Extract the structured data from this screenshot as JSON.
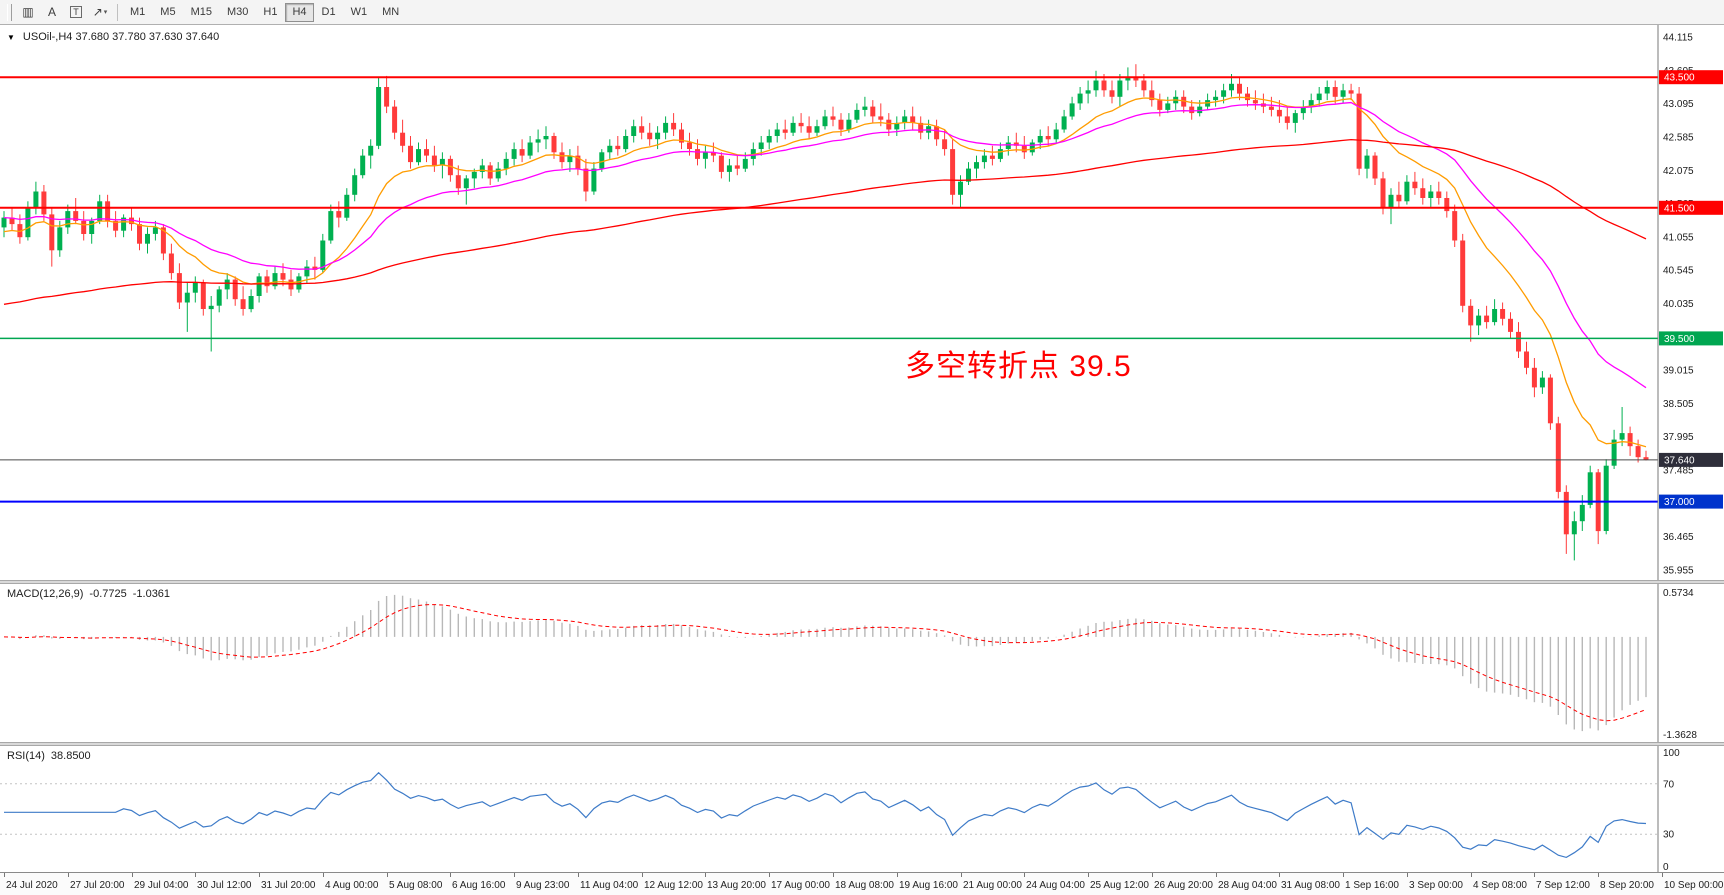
{
  "icons": {
    "one_click_caret": "▼",
    "dropdown_caret": "▾"
  },
  "toolbar": {
    "tools": [
      {
        "name": "chart-grid",
        "glyph": "▥"
      },
      {
        "name": "cursor-a",
        "glyph": "A"
      },
      {
        "name": "text-tool",
        "glyph": "T",
        "boxed": true
      },
      {
        "name": "line-studies-dropdown",
        "glyph": "↗",
        "caret": true
      }
    ],
    "timeframes": [
      {
        "label": "M1"
      },
      {
        "label": "M5"
      },
      {
        "label": "M15"
      },
      {
        "label": "M30"
      },
      {
        "label": "H1"
      },
      {
        "label": "H4",
        "active": true
      },
      {
        "label": "D1"
      },
      {
        "label": "W1"
      },
      {
        "label": "MN"
      }
    ]
  },
  "main_chart": {
    "symbol_header": "USOil-,H4  37.680 37.780 37.630 37.640",
    "annotation": {
      "text": "多空转折点 39.5",
      "color": "#ff0000"
    },
    "scale": {
      "max": 44.3,
      "min": 35.8
    },
    "price_axis_labels": [
      "44.115",
      "43.605",
      "43.095",
      "42.585",
      "42.075",
      "41.565",
      "41.055",
      "40.545",
      "40.035",
      "39.525",
      "39.015",
      "38.505",
      "37.995",
      "37.485",
      "36.975",
      "36.465",
      "35.955"
    ],
    "levels": [
      {
        "price": 43.5,
        "label": "43.500",
        "color": "#ff0000",
        "label_bg": "#ff0000",
        "width": 2,
        "kind": "hline"
      },
      {
        "price": 41.5,
        "label": "41.500",
        "color": "#ff0000",
        "label_bg": "#ff0000",
        "width": 2,
        "kind": "hline"
      },
      {
        "price": 39.5,
        "label": "39.500",
        "color": "#00a651",
        "label_bg": "#00a651",
        "width": 1.5,
        "kind": "hline"
      },
      {
        "price": 37.0,
        "label": "37.000",
        "color": "#0000ff",
        "label_bg": "#0033cc",
        "width": 2,
        "kind": "hline"
      },
      {
        "price": 37.64,
        "label": "37.640",
        "color": "#4a4a4a",
        "label_bg": "#2e2e3a",
        "width": 1,
        "kind": "bid"
      }
    ],
    "colors": {
      "up": "#00b050",
      "down": "#ff3b3b"
    }
  },
  "chart_data": {
    "type": "candlestick",
    "symbol": "USOil-",
    "timeframe": "H4",
    "ohlc_last": {
      "open": "37.680",
      "high": "37.780",
      "low": "37.630",
      "close": "37.640"
    },
    "bars_per_label": 8,
    "time_labels": [
      "24 Jul 2020",
      "27 Jul 20:00",
      "29 Jul 04:00",
      "30 Jul 12:00",
      "31 Jul 20:00",
      "4 Aug 00:00",
      "5 Aug 08:00",
      "6 Aug 16:00",
      "9 Aug 23:00",
      "11 Aug 04:00",
      "12 Aug 12:00",
      "13 Aug 20:00",
      "17 Aug 00:00",
      "18 Aug 08:00",
      "19 Aug 16:00",
      "21 Aug 00:00",
      "24 Aug 04:00",
      "25 Aug 12:00",
      "26 Aug 20:00",
      "28 Aug 04:00",
      "31 Aug 08:00",
      "1 Sep 16:00",
      "3 Sep 00:00",
      "4 Sep 08:00",
      "7 Sep 12:00",
      "8 Sep 20:00",
      "10 Sep 00:00"
    ],
    "moving_averages": [
      {
        "name": "ma-fast",
        "period": 13,
        "color": "#ff9c00",
        "seed": 41.1
      },
      {
        "name": "ma-mid",
        "period": 28,
        "color": "#ff00ff",
        "seed": 41.35
      },
      {
        "name": "ma-slow",
        "period": 120,
        "color": "#ff0000",
        "seed": 40.0
      }
    ],
    "candles": [
      [
        41.2,
        41.45,
        41.05,
        41.35
      ],
      [
        41.35,
        41.5,
        41.15,
        41.25
      ],
      [
        41.25,
        41.4,
        40.95,
        41.05
      ],
      [
        41.05,
        41.6,
        41.0,
        41.5
      ],
      [
        41.5,
        41.9,
        41.4,
        41.75
      ],
      [
        41.75,
        41.85,
        41.3,
        41.4
      ],
      [
        41.4,
        41.5,
        40.6,
        40.85
      ],
      [
        40.85,
        41.3,
        40.75,
        41.2
      ],
      [
        41.2,
        41.55,
        41.1,
        41.45
      ],
      [
        41.45,
        41.65,
        41.25,
        41.3
      ],
      [
        41.3,
        41.45,
        41.0,
        41.1
      ],
      [
        41.1,
        41.35,
        40.95,
        41.3
      ],
      [
        41.3,
        41.7,
        41.25,
        41.6
      ],
      [
        41.6,
        41.7,
        41.2,
        41.3
      ],
      [
        41.3,
        41.45,
        41.05,
        41.15
      ],
      [
        41.15,
        41.4,
        41.05,
        41.35
      ],
      [
        41.35,
        41.5,
        41.15,
        41.25
      ],
      [
        41.25,
        41.35,
        40.85,
        40.95
      ],
      [
        40.95,
        41.2,
        40.8,
        41.1
      ],
      [
        41.1,
        41.3,
        41.0,
        41.2
      ],
      [
        41.2,
        41.25,
        40.7,
        40.8
      ],
      [
        40.8,
        40.95,
        40.4,
        40.5
      ],
      [
        40.5,
        40.65,
        39.95,
        40.05
      ],
      [
        40.05,
        40.35,
        39.6,
        40.2
      ],
      [
        40.2,
        40.45,
        40.05,
        40.35
      ],
      [
        40.35,
        40.4,
        39.85,
        39.95
      ],
      [
        39.95,
        40.15,
        39.3,
        40.0
      ],
      [
        40.0,
        40.3,
        39.9,
        40.25
      ],
      [
        40.25,
        40.5,
        40.1,
        40.4
      ],
      [
        40.4,
        40.45,
        40.0,
        40.1
      ],
      [
        40.1,
        40.3,
        39.85,
        39.95
      ],
      [
        39.95,
        40.25,
        39.9,
        40.15
      ],
      [
        40.15,
        40.5,
        40.05,
        40.45
      ],
      [
        40.45,
        40.55,
        40.2,
        40.3
      ],
      [
        40.3,
        40.6,
        40.25,
        40.5
      ],
      [
        40.5,
        40.65,
        40.3,
        40.4
      ],
      [
        40.4,
        40.55,
        40.15,
        40.25
      ],
      [
        40.25,
        40.5,
        40.2,
        40.45
      ],
      [
        40.45,
        40.7,
        40.35,
        40.6
      ],
      [
        40.6,
        40.75,
        40.4,
        40.55
      ],
      [
        40.55,
        41.1,
        40.5,
        41.0
      ],
      [
        41.0,
        41.55,
        40.95,
        41.45
      ],
      [
        41.45,
        41.6,
        41.2,
        41.35
      ],
      [
        41.35,
        41.8,
        41.3,
        41.7
      ],
      [
        41.7,
        42.1,
        41.6,
        42.0
      ],
      [
        42.0,
        42.4,
        41.95,
        42.3
      ],
      [
        42.3,
        42.55,
        42.1,
        42.45
      ],
      [
        42.45,
        43.5,
        42.4,
        43.35
      ],
      [
        43.35,
        43.52,
        42.95,
        43.05
      ],
      [
        43.05,
        43.15,
        42.55,
        42.65
      ],
      [
        42.65,
        42.85,
        42.35,
        42.45
      ],
      [
        42.45,
        42.6,
        42.1,
        42.2
      ],
      [
        42.2,
        42.5,
        42.15,
        42.4
      ],
      [
        42.4,
        42.55,
        42.2,
        42.3
      ],
      [
        42.3,
        42.45,
        42.05,
        42.15
      ],
      [
        42.15,
        42.35,
        41.95,
        42.25
      ],
      [
        42.25,
        42.3,
        41.9,
        42.0
      ],
      [
        42.0,
        42.15,
        41.7,
        41.8
      ],
      [
        41.8,
        42.0,
        41.55,
        41.95
      ],
      [
        41.95,
        42.1,
        41.8,
        42.05
      ],
      [
        42.05,
        42.25,
        41.95,
        42.15
      ],
      [
        42.15,
        42.2,
        41.85,
        41.95
      ],
      [
        41.95,
        42.2,
        41.9,
        42.1
      ],
      [
        42.1,
        42.35,
        42.0,
        42.25
      ],
      [
        42.25,
        42.5,
        42.15,
        42.4
      ],
      [
        42.4,
        42.55,
        42.2,
        42.3
      ],
      [
        42.3,
        42.6,
        42.25,
        42.5
      ],
      [
        42.5,
        42.7,
        42.35,
        42.55
      ],
      [
        42.55,
        42.75,
        42.4,
        42.6
      ],
      [
        42.6,
        42.65,
        42.25,
        42.35
      ],
      [
        42.35,
        42.5,
        42.1,
        42.2
      ],
      [
        42.2,
        42.4,
        42.05,
        42.3
      ],
      [
        42.3,
        42.45,
        42.0,
        42.1
      ],
      [
        42.1,
        42.25,
        41.6,
        41.75
      ],
      [
        41.75,
        42.2,
        41.7,
        42.1
      ],
      [
        42.1,
        42.4,
        42.05,
        42.35
      ],
      [
        42.35,
        42.55,
        42.25,
        42.45
      ],
      [
        42.45,
        42.6,
        42.3,
        42.4
      ],
      [
        42.4,
        42.7,
        42.35,
        42.6
      ],
      [
        42.6,
        42.85,
        42.5,
        42.75
      ],
      [
        42.75,
        42.9,
        42.55,
        42.65
      ],
      [
        42.65,
        42.8,
        42.45,
        42.55
      ],
      [
        42.55,
        42.75,
        42.4,
        42.65
      ],
      [
        42.65,
        42.9,
        42.55,
        42.8
      ],
      [
        42.8,
        42.95,
        42.6,
        42.7
      ],
      [
        42.7,
        42.8,
        42.4,
        42.5
      ],
      [
        42.5,
        42.65,
        42.3,
        42.4
      ],
      [
        42.4,
        42.55,
        42.15,
        42.25
      ],
      [
        42.25,
        42.45,
        42.1,
        42.35
      ],
      [
        42.35,
        42.5,
        42.2,
        42.3
      ],
      [
        42.3,
        42.35,
        41.95,
        42.05
      ],
      [
        42.05,
        42.25,
        41.9,
        42.15
      ],
      [
        42.15,
        42.3,
        42.0,
        42.1
      ],
      [
        42.1,
        42.35,
        42.05,
        42.25
      ],
      [
        42.25,
        42.5,
        42.15,
        42.4
      ],
      [
        42.4,
        42.6,
        42.3,
        42.5
      ],
      [
        42.5,
        42.7,
        42.4,
        42.6
      ],
      [
        42.6,
        42.8,
        42.5,
        42.7
      ],
      [
        42.7,
        42.85,
        42.55,
        42.65
      ],
      [
        42.65,
        42.9,
        42.6,
        42.8
      ],
      [
        42.8,
        42.95,
        42.65,
        42.75
      ],
      [
        42.75,
        42.9,
        42.55,
        42.65
      ],
      [
        42.65,
        42.85,
        42.6,
        42.75
      ],
      [
        42.75,
        43.0,
        42.7,
        42.9
      ],
      [
        42.9,
        43.05,
        42.75,
        42.85
      ],
      [
        42.85,
        42.95,
        42.6,
        42.7
      ],
      [
        42.7,
        42.95,
        42.65,
        42.85
      ],
      [
        42.85,
        43.1,
        42.8,
        43.0
      ],
      [
        43.0,
        43.2,
        42.9,
        43.05
      ],
      [
        43.05,
        43.15,
        42.8,
        42.9
      ],
      [
        42.9,
        43.1,
        42.75,
        42.85
      ],
      [
        42.85,
        42.95,
        42.6,
        42.7
      ],
      [
        42.7,
        42.9,
        42.6,
        42.8
      ],
      [
        42.8,
        43.0,
        42.7,
        42.9
      ],
      [
        42.9,
        43.05,
        42.7,
        42.8
      ],
      [
        42.8,
        42.9,
        42.55,
        42.65
      ],
      [
        42.65,
        42.85,
        42.55,
        42.75
      ],
      [
        42.75,
        42.85,
        42.45,
        42.55
      ],
      [
        42.55,
        42.7,
        42.3,
        42.4
      ],
      [
        42.4,
        42.55,
        41.55,
        41.7
      ],
      [
        41.7,
        42.0,
        41.5,
        41.9
      ],
      [
        41.9,
        42.2,
        41.85,
        42.1
      ],
      [
        42.1,
        42.3,
        41.95,
        42.2
      ],
      [
        42.2,
        42.4,
        42.1,
        42.3
      ],
      [
        42.3,
        42.45,
        42.15,
        42.25
      ],
      [
        42.25,
        42.5,
        42.2,
        42.4
      ],
      [
        42.4,
        42.6,
        42.3,
        42.5
      ],
      [
        42.5,
        42.65,
        42.35,
        42.45
      ],
      [
        42.45,
        42.6,
        42.25,
        42.35
      ],
      [
        42.35,
        42.55,
        42.3,
        42.5
      ],
      [
        42.5,
        42.7,
        42.4,
        42.6
      ],
      [
        42.6,
        42.75,
        42.45,
        42.55
      ],
      [
        42.55,
        42.8,
        42.5,
        42.7
      ],
      [
        42.7,
        43.0,
        42.65,
        42.9
      ],
      [
        42.9,
        43.2,
        42.85,
        43.1
      ],
      [
        43.1,
        43.35,
        43.0,
        43.25
      ],
      [
        43.25,
        43.45,
        43.1,
        43.3
      ],
      [
        43.3,
        43.6,
        43.2,
        43.45
      ],
      [
        43.45,
        43.55,
        43.2,
        43.3
      ],
      [
        43.3,
        43.45,
        43.1,
        43.2
      ],
      [
        43.2,
        43.55,
        43.05,
        43.45
      ],
      [
        43.45,
        43.65,
        43.3,
        43.5
      ],
      [
        43.5,
        43.7,
        43.35,
        43.45
      ],
      [
        43.45,
        43.55,
        43.2,
        43.3
      ],
      [
        43.3,
        43.45,
        43.05,
        43.15
      ],
      [
        43.15,
        43.25,
        42.9,
        43.0
      ],
      [
        43.0,
        43.2,
        42.95,
        43.1
      ],
      [
        43.1,
        43.3,
        43.0,
        43.2
      ],
      [
        43.2,
        43.3,
        42.95,
        43.05
      ],
      [
        43.05,
        43.15,
        42.85,
        42.95
      ],
      [
        42.95,
        43.15,
        42.9,
        43.05
      ],
      [
        43.05,
        43.25,
        43.0,
        43.15
      ],
      [
        43.15,
        43.3,
        43.05,
        43.2
      ],
      [
        43.2,
        43.4,
        43.1,
        43.3
      ],
      [
        43.3,
        43.55,
        43.2,
        43.4
      ],
      [
        43.4,
        43.5,
        43.15,
        43.25
      ],
      [
        43.25,
        43.35,
        43.05,
        43.15
      ],
      [
        43.15,
        43.3,
        43.0,
        43.1
      ],
      [
        43.1,
        43.25,
        42.95,
        43.05
      ],
      [
        43.05,
        43.2,
        42.9,
        43.0
      ],
      [
        43.0,
        43.15,
        42.8,
        42.9
      ],
      [
        42.9,
        43.05,
        42.7,
        42.8
      ],
      [
        42.8,
        43.0,
        42.65,
        42.95
      ],
      [
        42.95,
        43.15,
        42.85,
        43.05
      ],
      [
        43.05,
        43.25,
        42.95,
        43.15
      ],
      [
        43.15,
        43.35,
        43.05,
        43.25
      ],
      [
        43.25,
        43.45,
        43.15,
        43.35
      ],
      [
        43.35,
        43.45,
        43.1,
        43.2
      ],
      [
        43.2,
        43.4,
        43.1,
        43.3
      ],
      [
        43.3,
        43.4,
        43.15,
        43.25
      ],
      [
        43.25,
        43.35,
        42.0,
        42.1
      ],
      [
        42.1,
        42.4,
        41.95,
        42.3
      ],
      [
        42.3,
        42.35,
        41.85,
        41.95
      ],
      [
        41.95,
        42.05,
        41.4,
        41.5
      ],
      [
        41.5,
        41.8,
        41.25,
        41.7
      ],
      [
        41.7,
        41.9,
        41.5,
        41.6
      ],
      [
        41.6,
        42.0,
        41.55,
        41.9
      ],
      [
        41.9,
        42.05,
        41.7,
        41.8
      ],
      [
        41.8,
        41.95,
        41.55,
        41.65
      ],
      [
        41.65,
        41.85,
        41.5,
        41.75
      ],
      [
        41.75,
        41.9,
        41.55,
        41.65
      ],
      [
        41.65,
        41.75,
        41.35,
        41.45
      ],
      [
        41.45,
        41.55,
        40.9,
        41.0
      ],
      [
        41.0,
        41.1,
        39.9,
        40.0
      ],
      [
        40.0,
        40.1,
        39.45,
        39.7
      ],
      [
        39.7,
        39.95,
        39.55,
        39.85
      ],
      [
        39.85,
        40.0,
        39.65,
        39.75
      ],
      [
        39.75,
        40.1,
        39.7,
        39.95
      ],
      [
        39.95,
        40.05,
        39.7,
        39.8
      ],
      [
        39.8,
        39.9,
        39.5,
        39.6
      ],
      [
        39.6,
        39.75,
        39.2,
        39.3
      ],
      [
        39.3,
        39.45,
        38.95,
        39.05
      ],
      [
        39.05,
        39.2,
        38.6,
        38.75
      ],
      [
        38.75,
        39.0,
        38.65,
        38.9
      ],
      [
        38.9,
        38.95,
        38.1,
        38.2
      ],
      [
        38.2,
        38.3,
        37.05,
        37.15
      ],
      [
        37.15,
        37.25,
        36.2,
        36.5
      ],
      [
        36.5,
        36.85,
        36.1,
        36.7
      ],
      [
        36.7,
        37.1,
        36.55,
        36.95
      ],
      [
        36.95,
        37.55,
        36.9,
        37.45
      ],
      [
        37.45,
        37.5,
        36.35,
        36.55
      ],
      [
        36.55,
        37.65,
        36.5,
        37.55
      ],
      [
        37.55,
        38.1,
        37.5,
        37.95
      ],
      [
        37.95,
        38.45,
        37.85,
        38.05
      ],
      [
        38.05,
        38.15,
        37.7,
        37.85
      ],
      [
        37.85,
        37.95,
        37.6,
        37.68
      ],
      [
        37.68,
        37.78,
        37.63,
        37.64
      ]
    ]
  },
  "macd_panel": {
    "title": "MACD(12,26,9)",
    "value_main": "-0.7725",
    "value_signal": "-1.0361",
    "params": {
      "fast": 12,
      "slow": 26,
      "signal": 9
    },
    "axis_max_label": "0.5734",
    "axis_min_label": "-1.3628",
    "colors": {
      "histogram": "#b8b8b8",
      "signal": "#ff0000"
    }
  },
  "rsi_panel": {
    "title": "RSI(14)",
    "value": "38.8500",
    "period": 14,
    "axis_labels": [
      "100",
      "70",
      "30",
      "0"
    ],
    "levels": [
      70,
      30
    ],
    "color": "#3e7bc8",
    "level_color": "#c4c4c4"
  }
}
